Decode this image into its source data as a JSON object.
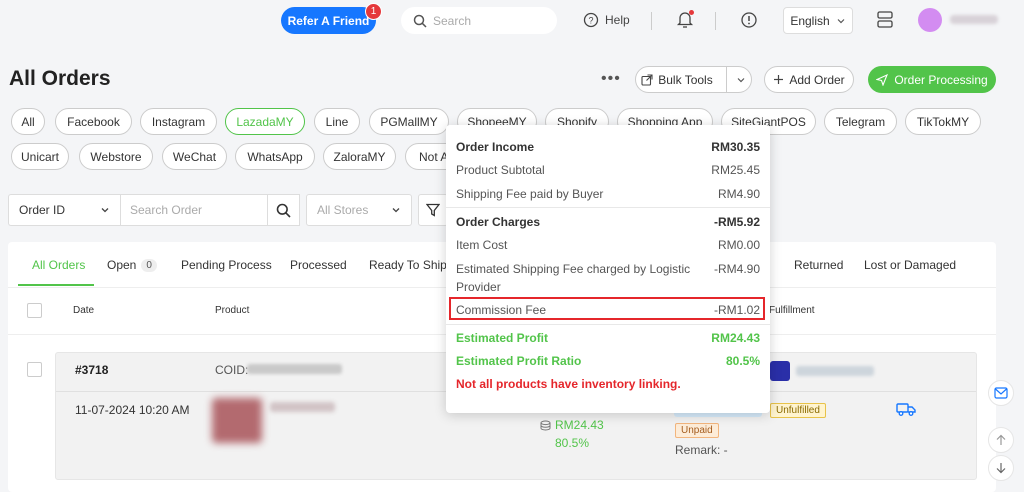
{
  "header": {
    "refer_label": "Refer A Friend",
    "refer_badge": "1",
    "search_placeholder": "Search",
    "help_label": "Help",
    "language": "English"
  },
  "page": {
    "title": "All Orders",
    "more_label": "•••",
    "bulk_tools_label": "Bulk Tools",
    "add_order_label": "Add Order",
    "order_processing_label": "Order Processing"
  },
  "channels": [
    "All",
    "Facebook",
    "Instagram",
    "LazadaMY",
    "Line",
    "PGMallMY",
    "ShopeeMY",
    "Shopify",
    "Shopping App",
    "SiteGiantPOS",
    "Telegram",
    "TikTokMY",
    "Unicart",
    "Webstore",
    "WeChat",
    "WhatsApp",
    "ZaloraMY",
    "Not A"
  ],
  "active_channel": "LazadaMY",
  "filters": {
    "field_select": "Order ID",
    "search_placeholder": "Search Order",
    "store_placeholder": "All Stores"
  },
  "tabs": {
    "all_orders": "All Orders",
    "open": "Open",
    "open_count": "0",
    "pending": "Pending Process",
    "processed": "Processed",
    "ready_to_ship": "Ready To Ship",
    "returned": "Returned",
    "lost_damaged": "Lost or Damaged"
  },
  "columns": {
    "date": "Date",
    "product": "Product",
    "fulfillment": "Fulfillment"
  },
  "order": {
    "id": "#3718",
    "coid_label": "COID:",
    "date": "11-07-2024 10:20 AM",
    "profit": "RM24.43",
    "profit_ratio": "80.5%",
    "payment_status": "Unpaid",
    "fulfillment_status": "Unfulfilled",
    "remark": "Remark: -"
  },
  "popover": {
    "order_income_label": "Order Income",
    "order_income": "RM30.35",
    "product_subtotal_label": "Product Subtotal",
    "product_subtotal": "RM25.45",
    "shipping_buyer_label": "Shipping Fee paid by Buyer",
    "shipping_buyer": "RM4.90",
    "order_charges_label": "Order Charges",
    "order_charges": "-RM5.92",
    "item_cost_label": "Item Cost",
    "item_cost": "RM0.00",
    "est_shipping_label_1": "Estimated Shipping Fee charged by Logistic",
    "est_shipping_label_2": "Provider",
    "est_shipping": "-RM4.90",
    "commission_label": "Commission Fee",
    "commission": "-RM1.02",
    "est_profit_label": "Estimated Profit",
    "est_profit": "RM24.43",
    "est_profit_ratio_label": "Estimated Profit Ratio",
    "est_profit_ratio": "80.5%",
    "warning": "Not all products have inventory linking."
  }
}
